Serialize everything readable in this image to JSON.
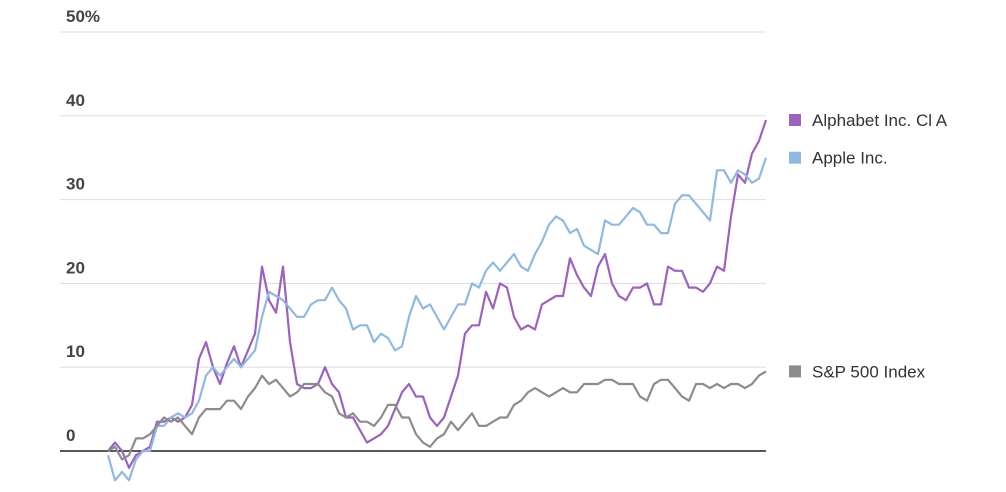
{
  "chart_data": {
    "type": "line",
    "categories": [
      null,
      null,
      null,
      null,
      null,
      null,
      null,
      null,
      null,
      null,
      null,
      null,
      null,
      null,
      null,
      null,
      null,
      null,
      null,
      null,
      null,
      null,
      null,
      null,
      null,
      null,
      null,
      null,
      null,
      null,
      null,
      null,
      null,
      null,
      null,
      null,
      null,
      null,
      null,
      null,
      null,
      null,
      null,
      null,
      null,
      null,
      null,
      null,
      null,
      null,
      null,
      null,
      null,
      null,
      null,
      null,
      null,
      null,
      null,
      null,
      null,
      null,
      null,
      null,
      null,
      null,
      null,
      null,
      null,
      null,
      null,
      null,
      null,
      null,
      null,
      null,
      null,
      null,
      null,
      null,
      null,
      null,
      null,
      null,
      null,
      null,
      null,
      null,
      null,
      null,
      null,
      null,
      null,
      null,
      null
    ],
    "series": [
      {
        "name": "Alphabet Inc. Cl A",
        "color": "#9b62bf",
        "values": [
          0,
          1,
          0,
          -2,
          -0.5,
          0,
          0.5,
          3.5,
          3.5,
          4,
          3.5,
          4,
          5.5,
          11,
          13,
          10,
          8,
          10.5,
          12.5,
          10,
          12,
          14,
          22,
          18,
          16.5,
          22,
          13,
          8,
          7.5,
          7.5,
          8,
          10,
          8,
          7,
          4,
          4,
          2.5,
          1,
          1.5,
          2,
          3,
          5,
          7,
          8,
          6.5,
          6.5,
          4,
          3,
          4,
          6.5,
          9,
          14,
          15,
          15,
          19,
          17,
          20,
          19.5,
          16,
          14.5,
          15,
          14.5,
          17.5,
          18,
          18.5,
          18.5,
          23,
          21,
          19.5,
          18.5,
          22,
          23.5,
          20,
          18.5,
          18,
          19.5,
          19.5,
          20,
          17.5,
          17.5,
          22,
          21.5,
          21.5,
          19.5,
          19.5,
          19,
          20,
          22,
          21.5,
          28,
          33,
          32,
          35.5,
          37,
          39.5
        ]
      },
      {
        "name": "Apple Inc.",
        "color": "#8fb8e2",
        "values": [
          -0.5,
          -3.5,
          -2.5,
          -3.5,
          -1,
          0,
          0,
          3,
          3,
          4,
          4.5,
          4,
          4.5,
          6,
          9,
          10,
          9,
          10,
          11,
          10,
          11,
          12,
          16,
          19,
          18.5,
          18,
          17,
          16,
          16,
          17.5,
          18,
          18,
          19.5,
          18,
          17,
          14.5,
          15,
          15,
          13,
          14,
          13.5,
          12,
          12.5,
          16,
          18.5,
          17,
          17.5,
          16,
          14.5,
          16,
          17.5,
          17.5,
          20,
          19.5,
          21.5,
          22.5,
          21.5,
          22.5,
          23.5,
          22,
          21.5,
          23.5,
          25,
          27,
          28,
          27.5,
          26,
          26.5,
          24.5,
          24,
          23.5,
          27.5,
          27,
          27,
          28,
          29,
          28.5,
          27,
          27,
          26,
          26,
          29.5,
          30.5,
          30.5,
          29.5,
          28.5,
          27.5,
          33.5,
          33.5,
          32,
          33.5,
          33,
          32,
          32.5,
          35
        ]
      },
      {
        "name": "S&P 500 Index",
        "color": "#8c8c8c",
        "values": [
          0,
          0.5,
          -1,
          -0.5,
          1.5,
          1.5,
          2,
          3,
          4,
          3.5,
          4,
          3,
          2,
          4,
          5,
          5,
          5,
          6,
          6,
          5,
          6.5,
          7.5,
          9,
          8,
          8.5,
          7.5,
          6.5,
          7,
          8,
          8,
          8,
          7,
          6.5,
          4.5,
          4,
          4.5,
          3.5,
          3.5,
          3,
          4,
          5.5,
          5.5,
          4,
          4,
          2,
          1,
          0.5,
          1.5,
          2,
          3.5,
          2.5,
          3.5,
          4.5,
          3,
          3,
          3.5,
          4,
          4,
          5.5,
          6,
          7,
          7.5,
          7,
          6.5,
          7,
          7.5,
          7,
          7,
          8,
          8,
          8,
          8.5,
          8.5,
          8,
          8,
          8,
          6.5,
          6,
          8,
          8.5,
          8.5,
          7.5,
          6.5,
          6,
          8,
          8,
          7.5,
          8,
          7.5,
          8,
          8,
          7.5,
          8,
          9,
          9.5
        ]
      }
    ],
    "ylim": [
      -4,
      50
    ],
    "yticks": [
      0,
      10,
      20,
      30,
      40,
      {
        "value": 50,
        "label": "50%"
      }
    ],
    "grid": true
  }
}
